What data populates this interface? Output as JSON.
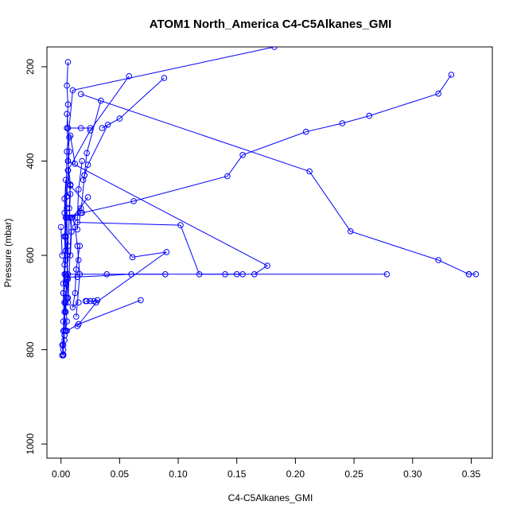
{
  "chart_data": {
    "type": "line",
    "title": "ATOM1 North_America C4-C5Alkanes_GMI",
    "xlabel": "C4-C5Alkanes_GMI",
    "ylabel": "Pressure (mbar)",
    "xlim": [
      -0.012,
      0.368
    ],
    "ylim": [
      1030,
      158
    ],
    "y_reversed": true,
    "grid": false,
    "x_ticks": [
      {
        "value": 0.0,
        "label": "0.00"
      },
      {
        "value": 0.05,
        "label": "0.05"
      },
      {
        "value": 0.1,
        "label": "0.10"
      },
      {
        "value": 0.15,
        "label": "0.15"
      },
      {
        "value": 0.2,
        "label": "0.20"
      },
      {
        "value": 0.25,
        "label": "0.25"
      },
      {
        "value": 0.3,
        "label": "0.30"
      },
      {
        "value": 0.35,
        "label": "0.35"
      }
    ],
    "y_ticks": [
      {
        "value": 200,
        "label": "200"
      },
      {
        "value": 400,
        "label": "400"
      },
      {
        "value": 600,
        "label": "600"
      },
      {
        "value": 800,
        "label": "800"
      },
      {
        "value": 1000,
        "label": "1000"
      }
    ],
    "color": "#0000ff",
    "marker": "open-circle",
    "series": [
      {
        "x": [
          0.004,
          0.005,
          0.004,
          0.006,
          0.005,
          0.004,
          0.005,
          0.003,
          0.004,
          0.003,
          0.003,
          0.002,
          0.002,
          0.002
        ],
        "y": [
          760,
          740,
          700,
          650,
          600,
          560,
          520,
          480,
          560,
          620,
          700,
          760,
          790,
          810
        ]
      },
      {
        "x": [
          0.006,
          0.005,
          0.006,
          0.005,
          0.007,
          0.006,
          0.008,
          0.007,
          0.006,
          0.005,
          0.004
        ],
        "y": [
          190,
          240,
          280,
          330,
          380,
          420,
          470,
          520,
          580,
          650,
          720
        ]
      },
      {
        "x": [
          0.003,
          0.002,
          0.004,
          0.003,
          0.005,
          0.004,
          0.003,
          0.004,
          0.002
        ],
        "y": [
          760,
          680,
          610,
          560,
          500,
          440,
          510,
          590,
          660
        ]
      },
      {
        "x": [
          0.002,
          0.001,
          0.003,
          0.002,
          0.004,
          0.003,
          0.002
        ],
        "y": [
          812,
          790,
          770,
          740,
          720,
          700,
          680
        ]
      },
      {
        "x": [
          0.005,
          0.007,
          0.006,
          0.008,
          0.007,
          0.009,
          0.008
        ],
        "y": [
          300,
          350,
          400,
          450,
          500,
          550,
          600
        ]
      },
      {
        "x": [
          0.006,
          0.004,
          0.005,
          0.003,
          0.004
        ],
        "y": [
          640,
          660,
          690,
          720,
          760
        ]
      },
      {
        "x": [
          0.003,
          0.002,
          0.003,
          0.001
        ],
        "y": [
          780,
          800,
          770,
          812
        ]
      },
      {
        "x": [
          0.182,
          0.01,
          0.005,
          0.004,
          0.003
        ],
        "y": [
          158,
          250,
          380,
          520,
          640
        ]
      },
      {
        "x": [
          0.058,
          0.025,
          0.006,
          0.005
        ],
        "y": [
          220,
          335,
          420,
          475
        ]
      },
      {
        "x": [
          0.088,
          0.05,
          0.035
        ],
        "y": [
          224,
          310,
          330
        ]
      },
      {
        "x": [
          0.333,
          0.322,
          0.263,
          0.24,
          0.209,
          0.155,
          0.142,
          0.062,
          0.018,
          0.005,
          0.006
        ],
        "y": [
          217,
          257,
          304,
          320,
          338,
          387,
          432,
          485,
          510,
          520,
          690
        ]
      },
      {
        "x": [
          0.017,
          0.212,
          0.247,
          0.322,
          0.348,
          0.348,
          0.354
        ],
        "y": [
          258,
          422,
          549,
          610,
          640,
          640,
          640
        ]
      },
      {
        "x": [
          0.034,
          0.022,
          0.02,
          0.019
        ],
        "y": [
          272,
          383,
          430,
          440
        ]
      },
      {
        "x": [
          0.04,
          0.023,
          0.02,
          0.017
        ],
        "y": [
          323,
          408,
          430,
          510
        ]
      },
      {
        "x": [
          0.025,
          0.017,
          0.006
        ],
        "y": [
          330,
          330,
          330
        ]
      },
      {
        "x": [
          0.017,
          0.009,
          0.006
        ],
        "y": [
          500,
          520,
          700
        ]
      },
      {
        "x": [
          0.018,
          0.015,
          0.014,
          0.014
        ],
        "y": [
          400,
          460,
          520,
          545
        ]
      },
      {
        "x": [
          0.008,
          0.012
        ],
        "y": [
          346,
          406
        ]
      },
      {
        "x": [
          0.006,
          0.176,
          0.165
        ],
        "y": [
          400,
          622,
          640
        ]
      },
      {
        "x": [
          0.008,
          0.061,
          0.09,
          0.03,
          0.014
        ],
        "y": [
          452,
          604,
          593,
          700,
          750
        ]
      },
      {
        "x": [
          0.014,
          0.102,
          0.118,
          0.14,
          0.155
        ],
        "y": [
          530,
          536,
          640,
          640,
          640
        ]
      },
      {
        "x": [
          0.278,
          0.15,
          0.039,
          0.004
        ],
        "y": [
          640,
          640,
          640,
          640
        ]
      },
      {
        "x": [
          0.089,
          0.06,
          0.014,
          0.005
        ],
        "y": [
          640,
          640,
          646,
          646
        ]
      },
      {
        "x": [
          0.068,
          0.015,
          0.005
        ],
        "y": [
          695,
          746,
          760
        ]
      },
      {
        "x": [
          0.031,
          0.028,
          0.025,
          0.022,
          0.021
        ],
        "y": [
          695,
          697,
          697,
          697,
          697
        ]
      },
      {
        "x": [
          0.023,
          0.01,
          0.012,
          0.014,
          0.015,
          0.016,
          0.013
        ],
        "y": [
          477,
          520,
          540,
          580,
          610,
          640,
          730
        ]
      },
      {
        "x": [
          0.016,
          0.013,
          0.012,
          0.01,
          0.015
        ],
        "y": [
          580,
          630,
          680,
          710,
          700
        ]
      },
      {
        "x": [
          0.0,
          0.001
        ],
        "y": [
          540,
          600
        ]
      }
    ]
  }
}
